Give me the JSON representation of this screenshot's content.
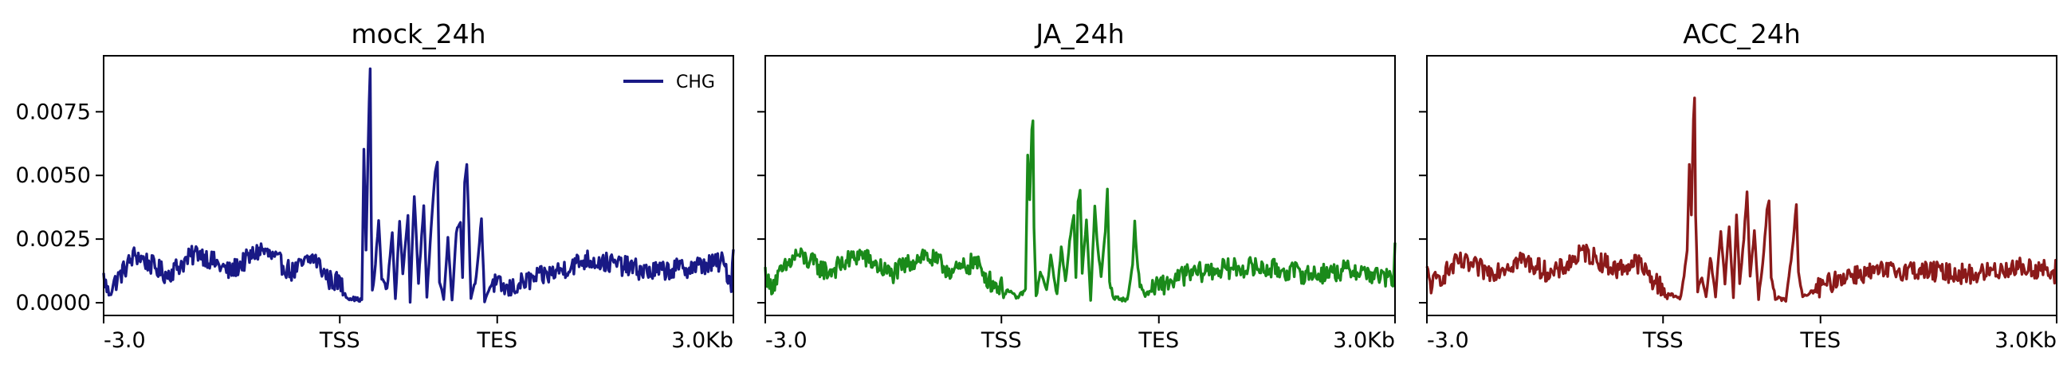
{
  "figure": {
    "panels": [
      {
        "title": "mock_24h",
        "color": "#191985",
        "show_y_labels": true,
        "show_legend": true
      },
      {
        "title": "JA_24h",
        "color": "#1a8a1a",
        "show_y_labels": false,
        "show_legend": false
      },
      {
        "title": "ACC_24h",
        "color": "#8b1a1a",
        "show_y_labels": false,
        "show_legend": false
      }
    ],
    "legend": {
      "label": "CHG",
      "placement": "top-right",
      "color": "#191985"
    },
    "x_ticks": [
      "-3.0",
      "TSS",
      "TES",
      "3.0Kb"
    ],
    "y_ticks": [
      "0.0000",
      "0.0025",
      "0.0050",
      "0.0075"
    ]
  },
  "chart_data": [
    {
      "type": "line",
      "title": "mock_24h",
      "x_range": [
        0,
        600
      ],
      "x_ticks": [
        {
          "x": 0,
          "label": "-3.0"
        },
        {
          "x": 225,
          "label": "TSS"
        },
        {
          "x": 375,
          "label": "TES"
        },
        {
          "x": 600,
          "label": "3.0Kb"
        }
      ],
      "ylim": [
        -0.0005,
        0.0097
      ],
      "y_ticks": [
        0,
        0.0025,
        0.005,
        0.0075
      ],
      "grid": false,
      "legend": "top-right",
      "series": [
        {
          "name": "CHG",
          "color": "#191985",
          "baseline": 0.0013,
          "noise": 0.0004,
          "key_points": [
            [
              0,
              0.001
            ],
            [
              4,
              0.0004
            ],
            [
              30,
              0.0019
            ],
            [
              60,
              0.0011
            ],
            [
              90,
              0.002
            ],
            [
              120,
              0.0012
            ],
            [
              150,
              0.0021
            ],
            [
              180,
              0.0012
            ],
            [
              200,
              0.0018
            ],
            [
              215,
              0.0009
            ],
            [
              225,
              0.0008
            ],
            [
              232,
              0.0002
            ],
            [
              246,
              0.0001
            ],
            [
              248,
              0.006
            ],
            [
              250,
              0.002
            ],
            [
              252,
              0.0061
            ],
            [
              253,
              0.0078
            ],
            [
              254,
              0.0092
            ],
            [
              255,
              0.003
            ],
            [
              256,
              0.0005
            ],
            [
              258,
              0.001
            ],
            [
              262,
              0.0032
            ],
            [
              265,
              0.001
            ],
            [
              270,
              0.0005
            ],
            [
              275,
              0.0028
            ],
            [
              278,
              0.0001
            ],
            [
              282,
              0.0032
            ],
            [
              285,
              0.0012
            ],
            [
              290,
              0.0035
            ],
            [
              292,
              0.0001
            ],
            [
              296,
              0.0042
            ],
            [
              300,
              0.0008
            ],
            [
              305,
              0.0038
            ],
            [
              308,
              0.0002
            ],
            [
              312,
              0.003
            ],
            [
              316,
              0.0052
            ],
            [
              318,
              0.0055
            ],
            [
              320,
              0.0008
            ],
            [
              324,
              0.0002
            ],
            [
              328,
              0.0025
            ],
            [
              332,
              0.0001
            ],
            [
              336,
              0.0028
            ],
            [
              340,
              0.0032
            ],
            [
              342,
              0.001
            ],
            [
              344,
              0.0048
            ],
            [
              346,
              0.0055
            ],
            [
              348,
              0.003
            ],
            [
              350,
              0.0001
            ],
            [
              355,
              0.001
            ],
            [
              360,
              0.0033
            ],
            [
              363,
              0.0001
            ],
            [
              370,
              0.0008
            ],
            [
              385,
              0.0005
            ],
            [
              400,
              0.0008
            ],
            [
              430,
              0.0012
            ],
            [
              460,
              0.0017
            ],
            [
              490,
              0.0015
            ],
            [
              520,
              0.0012
            ],
            [
              560,
              0.0014
            ],
            [
              590,
              0.0016
            ],
            [
              598,
              0.0008
            ],
            [
              600,
              0.0021
            ]
          ]
        }
      ]
    },
    {
      "type": "line",
      "title": "JA_24h",
      "x_range": [
        0,
        600
      ],
      "x_ticks": [
        {
          "x": 0,
          "label": "-3.0"
        },
        {
          "x": 225,
          "label": "TSS"
        },
        {
          "x": 375,
          "label": "TES"
        },
        {
          "x": 600,
          "label": "3.0Kb"
        }
      ],
      "ylim": [
        -0.0005,
        0.0097
      ],
      "y_ticks": [
        0,
        0.0025,
        0.005,
        0.0075
      ],
      "grid": false,
      "series": [
        {
          "name": "",
          "color": "#1a8a1a",
          "baseline": 0.0013,
          "noise": 0.0004,
          "key_points": [
            [
              0,
              0.0012
            ],
            [
              4,
              0.0006
            ],
            [
              30,
              0.0019
            ],
            [
              60,
              0.0012
            ],
            [
              90,
              0.0019
            ],
            [
              120,
              0.0011
            ],
            [
              150,
              0.0019
            ],
            [
              180,
              0.0012
            ],
            [
              200,
              0.0016
            ],
            [
              215,
              0.0008
            ],
            [
              230,
              0.0005
            ],
            [
              240,
              0.0002
            ],
            [
              248,
              0.0005
            ],
            [
              250,
              0.0058
            ],
            [
              252,
              0.004
            ],
            [
              254,
              0.0068
            ],
            [
              255,
              0.0072
            ],
            [
              256,
              0.003
            ],
            [
              258,
              0.0002
            ],
            [
              262,
              0.0012
            ],
            [
              268,
              0.0005
            ],
            [
              272,
              0.0018
            ],
            [
              278,
              0.0003
            ],
            [
              282,
              0.0022
            ],
            [
              286,
              0.0008
            ],
            [
              290,
              0.0024
            ],
            [
              294,
              0.0035
            ],
            [
              296,
              0.001
            ],
            [
              298,
              0.004
            ],
            [
              300,
              0.0044
            ],
            [
              302,
              0.0012
            ],
            [
              306,
              0.0032
            ],
            [
              310,
              0.0001
            ],
            [
              314,
              0.0038
            ],
            [
              316,
              0.0025
            ],
            [
              320,
              0.001
            ],
            [
              324,
              0.0028
            ],
            [
              326,
              0.0045
            ],
            [
              328,
              0.0008
            ],
            [
              332,
              0.0002
            ],
            [
              345,
              0.0001
            ],
            [
              350,
              0.0015
            ],
            [
              352,
              0.0032
            ],
            [
              354,
              0.0018
            ],
            [
              357,
              0.0007
            ],
            [
              362,
              0.0003
            ],
            [
              372,
              0.0006
            ],
            [
              385,
              0.0008
            ],
            [
              400,
              0.0011
            ],
            [
              430,
              0.0013
            ],
            [
              460,
              0.0014
            ],
            [
              490,
              0.0013
            ],
            [
              520,
              0.0011
            ],
            [
              560,
              0.0013
            ],
            [
              598,
              0.0009
            ],
            [
              600,
              0.002
            ]
          ]
        }
      ]
    },
    {
      "type": "line",
      "title": "ACC_24h",
      "x_range": [
        0,
        600
      ],
      "x_ticks": [
        {
          "x": 0,
          "label": "-3.0"
        },
        {
          "x": 225,
          "label": "TSS"
        },
        {
          "x": 375,
          "label": "TES"
        },
        {
          "x": 600,
          "label": "3.0Kb"
        }
      ],
      "ylim": [
        -0.0005,
        0.0097
      ],
      "y_ticks": [
        0,
        0.0025,
        0.005,
        0.0075
      ],
      "grid": false,
      "series": [
        {
          "name": "",
          "color": "#8b1a1a",
          "baseline": 0.0012,
          "noise": 0.0004,
          "key_points": [
            [
              0,
              0.0012
            ],
            [
              4,
              0.0007
            ],
            [
              30,
              0.0016
            ],
            [
              60,
              0.0012
            ],
            [
              90,
              0.0017
            ],
            [
              120,
              0.0011
            ],
            [
              150,
              0.002
            ],
            [
              180,
              0.0013
            ],
            [
              200,
              0.0016
            ],
            [
              215,
              0.0009
            ],
            [
              232,
              0.0003
            ],
            [
              242,
              0.0002
            ],
            [
              248,
              0.002
            ],
            [
              250,
              0.0055
            ],
            [
              252,
              0.0035
            ],
            [
              254,
              0.0072
            ],
            [
              255,
              0.008
            ],
            [
              256,
              0.0035
            ],
            [
              258,
              0.0005
            ],
            [
              262,
              0.001
            ],
            [
              266,
              0.0002
            ],
            [
              270,
              0.0018
            ],
            [
              275,
              0.0003
            ],
            [
              280,
              0.0028
            ],
            [
              284,
              0.0008
            ],
            [
              288,
              0.003
            ],
            [
              292,
              0.0002
            ],
            [
              295,
              0.0035
            ],
            [
              298,
              0.0008
            ],
            [
              302,
              0.0025
            ],
            [
              305,
              0.0044
            ],
            [
              308,
              0.001
            ],
            [
              312,
              0.0028
            ],
            [
              316,
              0.0002
            ],
            [
              320,
              0.0015
            ],
            [
              324,
              0.0036
            ],
            [
              326,
              0.004
            ],
            [
              328,
              0.001
            ],
            [
              332,
              0.0002
            ],
            [
              342,
              0.0001
            ],
            [
              348,
              0.002
            ],
            [
              352,
              0.0039
            ],
            [
              354,
              0.0012
            ],
            [
              358,
              0.0002
            ],
            [
              370,
              0.0005
            ],
            [
              385,
              0.0008
            ],
            [
              400,
              0.0011
            ],
            [
              430,
              0.0012
            ],
            [
              460,
              0.0013
            ],
            [
              490,
              0.0012
            ],
            [
              520,
              0.0011
            ],
            [
              560,
              0.0014
            ],
            [
              590,
              0.0013
            ],
            [
              598,
              0.0009
            ],
            [
              600,
              0.0017
            ]
          ]
        }
      ]
    }
  ]
}
